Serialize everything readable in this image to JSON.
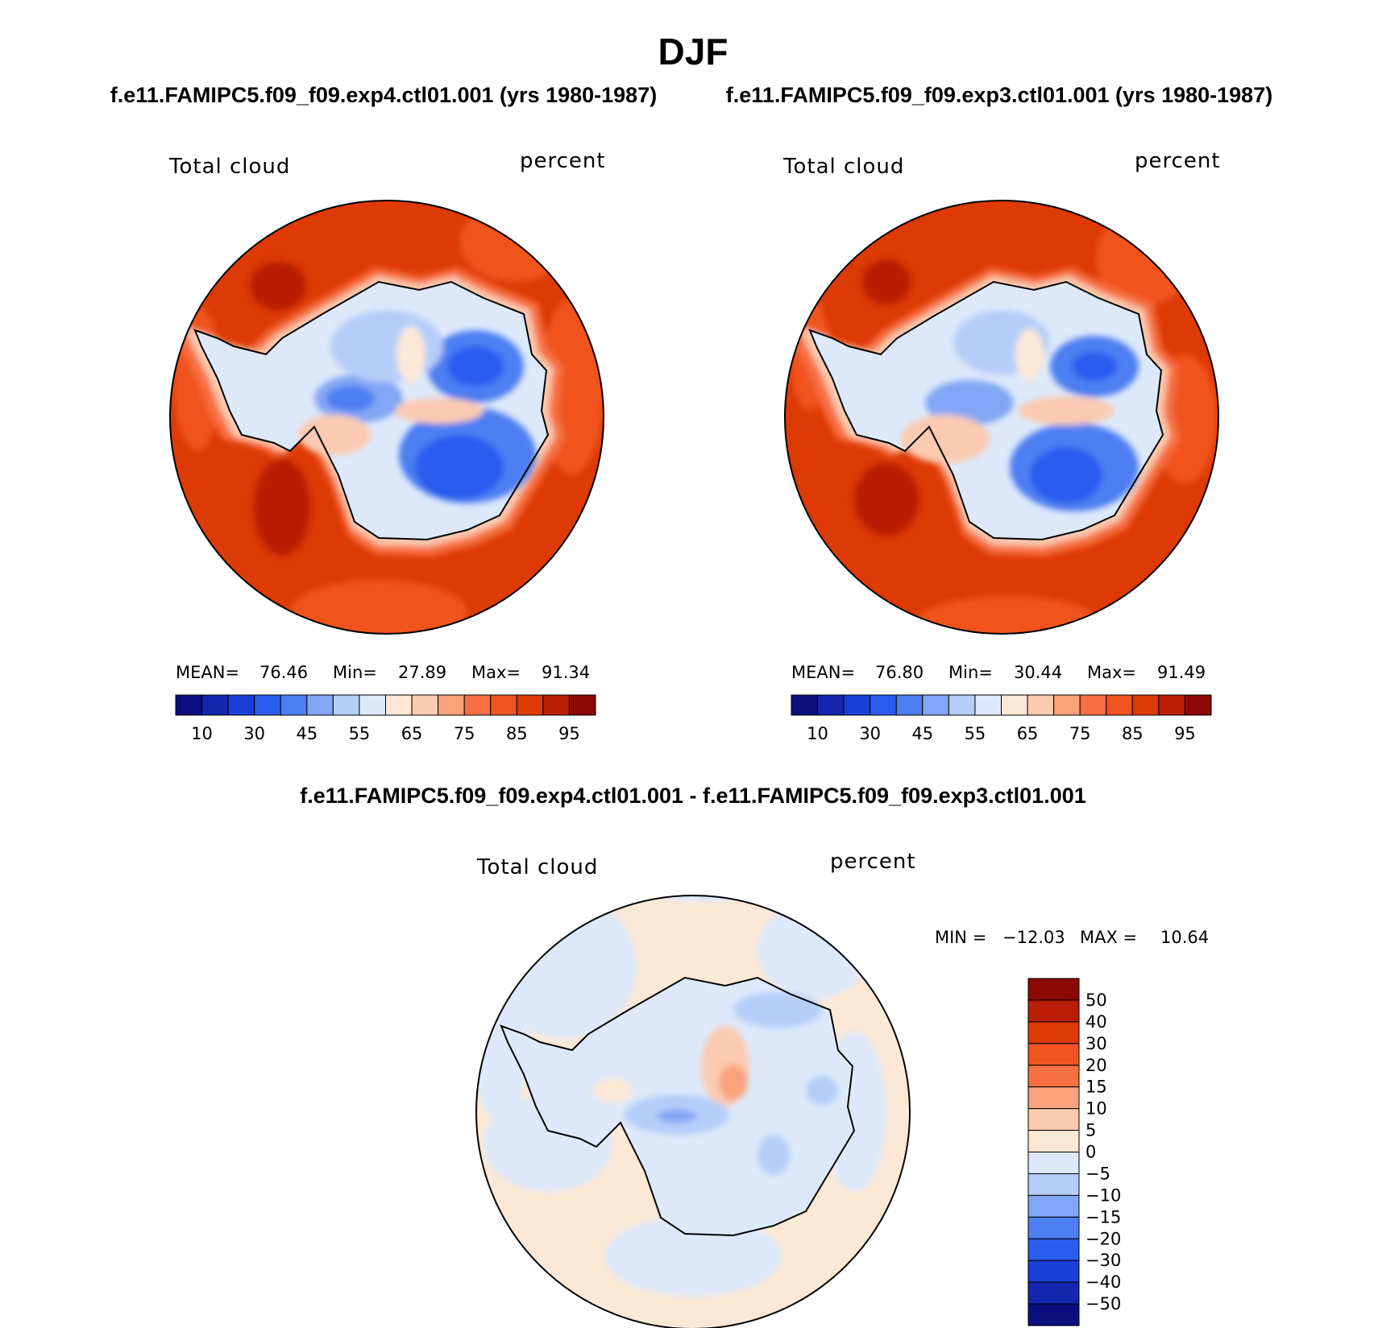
{
  "figure": {
    "season_title": "DJF",
    "panel_a_title": "f.e11.FAMIPC5.f09_f09.exp4.ctl01.001 (yrs 1980-1987)",
    "panel_b_title": "f.e11.FAMIPC5.f09_f09.exp3.ctl01.001 (yrs 1980-1987)",
    "diff_title": "f.e11.FAMIPC5.f09_f09.exp4.ctl01.001 - f.e11.FAMIPC5.f09_f09.exp3.ctl01.001"
  },
  "chart_data": [
    {
      "type": "heatmap",
      "projection": "south polar stereographic",
      "variable_label": "Total cloud",
      "units_label": "percent",
      "stats": {
        "mean_label": "MEAN=",
        "mean": "76.46",
        "min_label": "Min=",
        "min": "27.89",
        "max_label": "Max=",
        "max": "91.34"
      },
      "colorbar": {
        "orientation": "horizontal",
        "levels": [
          5,
          10,
          20,
          30,
          40,
          45,
          50,
          55,
          60,
          65,
          70,
          75,
          80,
          85,
          90,
          95
        ],
        "tick_labels": [
          "10",
          "30",
          "45",
          "55",
          "65",
          "75",
          "85",
          "95"
        ],
        "colors": [
          "#0b0f80",
          "#1426b0",
          "#1a3fd8",
          "#2a5cf0",
          "#4d7ef2",
          "#82a6f5",
          "#b5cdf9",
          "#dde9fb",
          "#fde8d5",
          "#fbcab0",
          "#f9a27c",
          "#f76f42",
          "#f0531f",
          "#dd3a05",
          "#b91e05",
          "#8b0805"
        ]
      }
    },
    {
      "type": "heatmap",
      "projection": "south polar stereographic",
      "variable_label": "Total cloud",
      "units_label": "percent",
      "stats": {
        "mean_label": "MEAN=",
        "mean": "76.80",
        "min_label": "Min=",
        "min": "30.44",
        "max_label": "Max=",
        "max": "91.49"
      },
      "colorbar": {
        "orientation": "horizontal",
        "levels": [
          5,
          10,
          20,
          30,
          40,
          45,
          50,
          55,
          60,
          65,
          70,
          75,
          80,
          85,
          90,
          95
        ],
        "tick_labels": [
          "10",
          "30",
          "45",
          "55",
          "65",
          "75",
          "85",
          "95"
        ],
        "colors": [
          "#0b0f80",
          "#1426b0",
          "#1a3fd8",
          "#2a5cf0",
          "#4d7ef2",
          "#82a6f5",
          "#b5cdf9",
          "#dde9fb",
          "#fde8d5",
          "#fbcab0",
          "#f9a27c",
          "#f76f42",
          "#f0531f",
          "#dd3a05",
          "#b91e05",
          "#8b0805"
        ]
      }
    },
    {
      "type": "heatmap",
      "projection": "south polar stereographic",
      "variable_label": "Total cloud",
      "units_label": "percent",
      "stats": {
        "min_label": "MIN =",
        "min": "−12.03",
        "max_label": "MAX =",
        "max": "10.64"
      },
      "colorbar": {
        "orientation": "vertical",
        "levels": [
          -50,
          -40,
          -30,
          -20,
          -15,
          -10,
          -5,
          0,
          5,
          10,
          15,
          20,
          30,
          40,
          50
        ],
        "tick_labels": [
          "50",
          "40",
          "30",
          "20",
          "15",
          "10",
          "5",
          "0",
          "−5",
          "−10",
          "−15",
          "−20",
          "−30",
          "−40",
          "−50"
        ],
        "colors": [
          "#8b0805",
          "#b91e05",
          "#dd3a05",
          "#f0531f",
          "#f76f42",
          "#f9a27c",
          "#fbcab0",
          "#fde8d5",
          "#dde9fb",
          "#b5cdf9",
          "#82a6f5",
          "#4d7ef2",
          "#2a5cf0",
          "#1a3fd8",
          "#1426b0",
          "#0b0f80"
        ]
      }
    }
  ]
}
